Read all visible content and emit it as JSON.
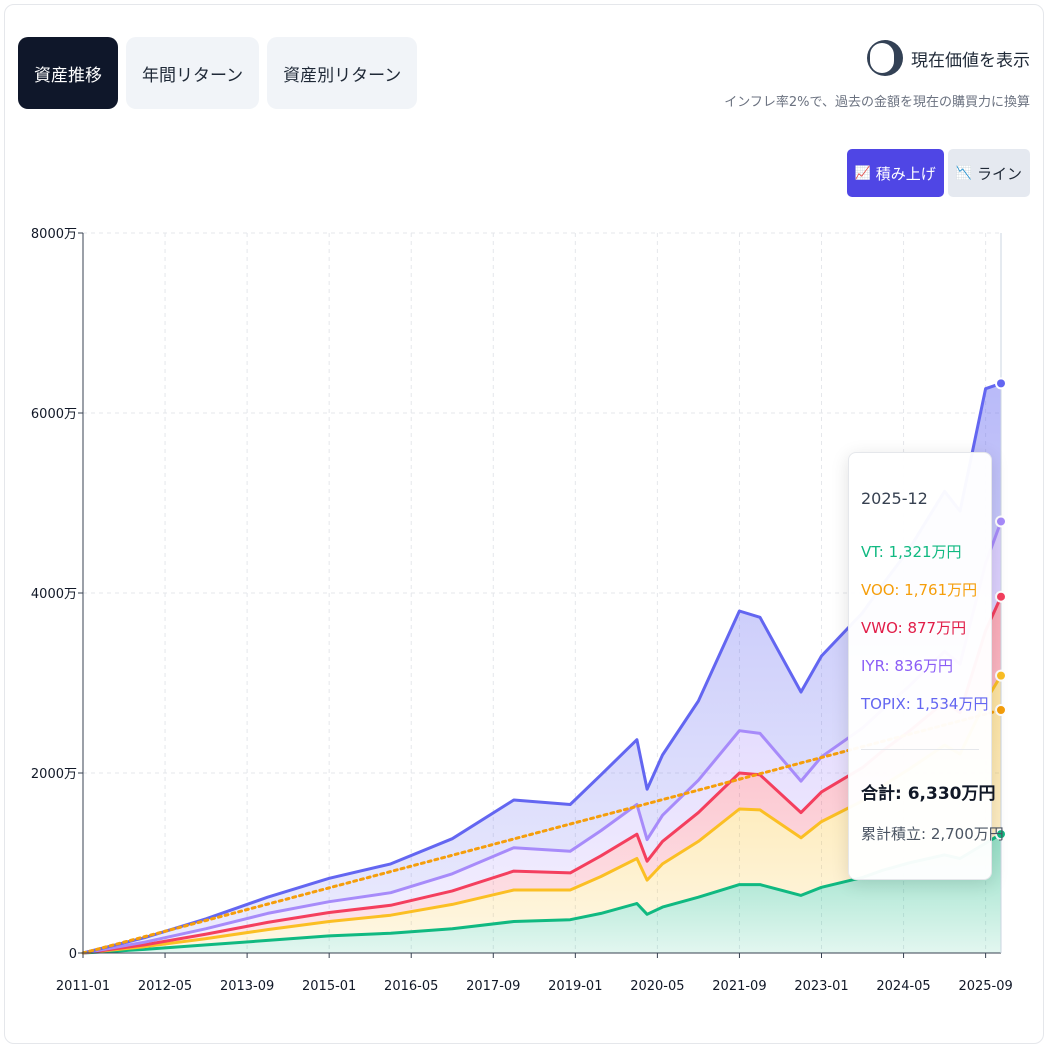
{
  "tabs": [
    {
      "label": "資産推移",
      "active": true
    },
    {
      "label": "年間リターン",
      "active": false
    },
    {
      "label": "資産別リターン",
      "active": false
    }
  ],
  "toggle": {
    "label": "現在価値を表示",
    "note": "インフレ率2%で、過去の金額を現在の購買力に換算"
  },
  "modes": {
    "stacked_label": "積み上げ",
    "line_label": "ライン"
  },
  "colors": {
    "VT": "#10b981",
    "VOO": "#fbbf24",
    "VWO": "#f43f5e",
    "IYR": "#a78bfa",
    "TOPIX": "#6366f1",
    "cumulative": "#f59e0b",
    "active_tab": "#0f172a",
    "active_mode": "#4f46e5"
  },
  "tooltip": {
    "date": "2025-12",
    "items": [
      {
        "label": "VT: 1,321万円",
        "color": "#10b981"
      },
      {
        "label": "VOO: 1,761万円",
        "color": "#f59e0b"
      },
      {
        "label": "VWO: 877万円",
        "color": "#e11d48"
      },
      {
        "label": "IYR: 836万円",
        "color": "#8b5cf6"
      },
      {
        "label": "TOPIX: 1,534万円",
        "color": "#6366f1"
      }
    ],
    "total": "合計: 6,330万円",
    "cumulative": "累計積立: 2,700万円"
  },
  "chart_data": {
    "type": "area",
    "stacked": true,
    "y_unit": "万円",
    "ylim": [
      0,
      8000
    ],
    "y_ticks": [
      "0",
      "2000万",
      "4000万",
      "6000万",
      "8000万"
    ],
    "x_ticks": [
      "2011-01",
      "2012-05",
      "2013-09",
      "2015-01",
      "2016-05",
      "2017-09",
      "2019-01",
      "2020-05",
      "2021-09",
      "2023-01",
      "2024-05",
      "2025-09"
    ],
    "x_range": [
      "2011-01",
      "2025-12"
    ],
    "x": [
      "2011-01",
      "2012-01",
      "2013-01",
      "2014-01",
      "2015-01",
      "2016-01",
      "2017-01",
      "2018-01",
      "2018-12",
      "2019-06",
      "2020-01",
      "2020-03",
      "2020-06",
      "2021-01",
      "2021-09",
      "2022-01",
      "2022-09",
      "2023-01",
      "2023-09",
      "2024-01",
      "2024-06",
      "2025-01",
      "2025-04",
      "2025-09",
      "2025-12"
    ],
    "series": [
      {
        "name": "VT",
        "values": [
          0,
          40,
          90,
          140,
          190,
          220,
          270,
          350,
          370,
          440,
          550,
          430,
          510,
          620,
          760,
          760,
          640,
          730,
          840,
          920,
          1000,
          1090,
          1050,
          1220,
          1321
        ]
      },
      {
        "name": "VOO",
        "values": [
          0,
          30,
          70,
          120,
          160,
          200,
          270,
          350,
          330,
          410,
          500,
          380,
          480,
          620,
          840,
          830,
          640,
          730,
          850,
          940,
          1040,
          1220,
          1160,
          1580,
          1761
        ]
      },
      {
        "name": "VWO",
        "values": [
          0,
          20,
          50,
          80,
          100,
          110,
          150,
          210,
          190,
          230,
          270,
          210,
          250,
          320,
          400,
          390,
          280,
          330,
          370,
          390,
          420,
          480,
          460,
          780,
          877
        ]
      },
      {
        "name": "IYR",
        "values": [
          0,
          30,
          60,
          100,
          120,
          140,
          190,
          260,
          240,
          280,
          330,
          240,
          290,
          360,
          470,
          460,
          350,
          390,
          440,
          460,
          500,
          560,
          540,
          750,
          836
        ]
      },
      {
        "name": "TOPIX",
        "values": [
          0,
          50,
          110,
          180,
          260,
          320,
          390,
          530,
          520,
          620,
          720,
          560,
          670,
          880,
          1330,
          1290,
          990,
          1120,
          1280,
          1390,
          1520,
          1780,
          1700,
          1940,
          1534
        ]
      }
    ],
    "cumulative": {
      "name": "累計積立",
      "x": [
        "2011-01",
        "2025-12"
      ],
      "values": [
        0,
        2700
      ]
    }
  }
}
